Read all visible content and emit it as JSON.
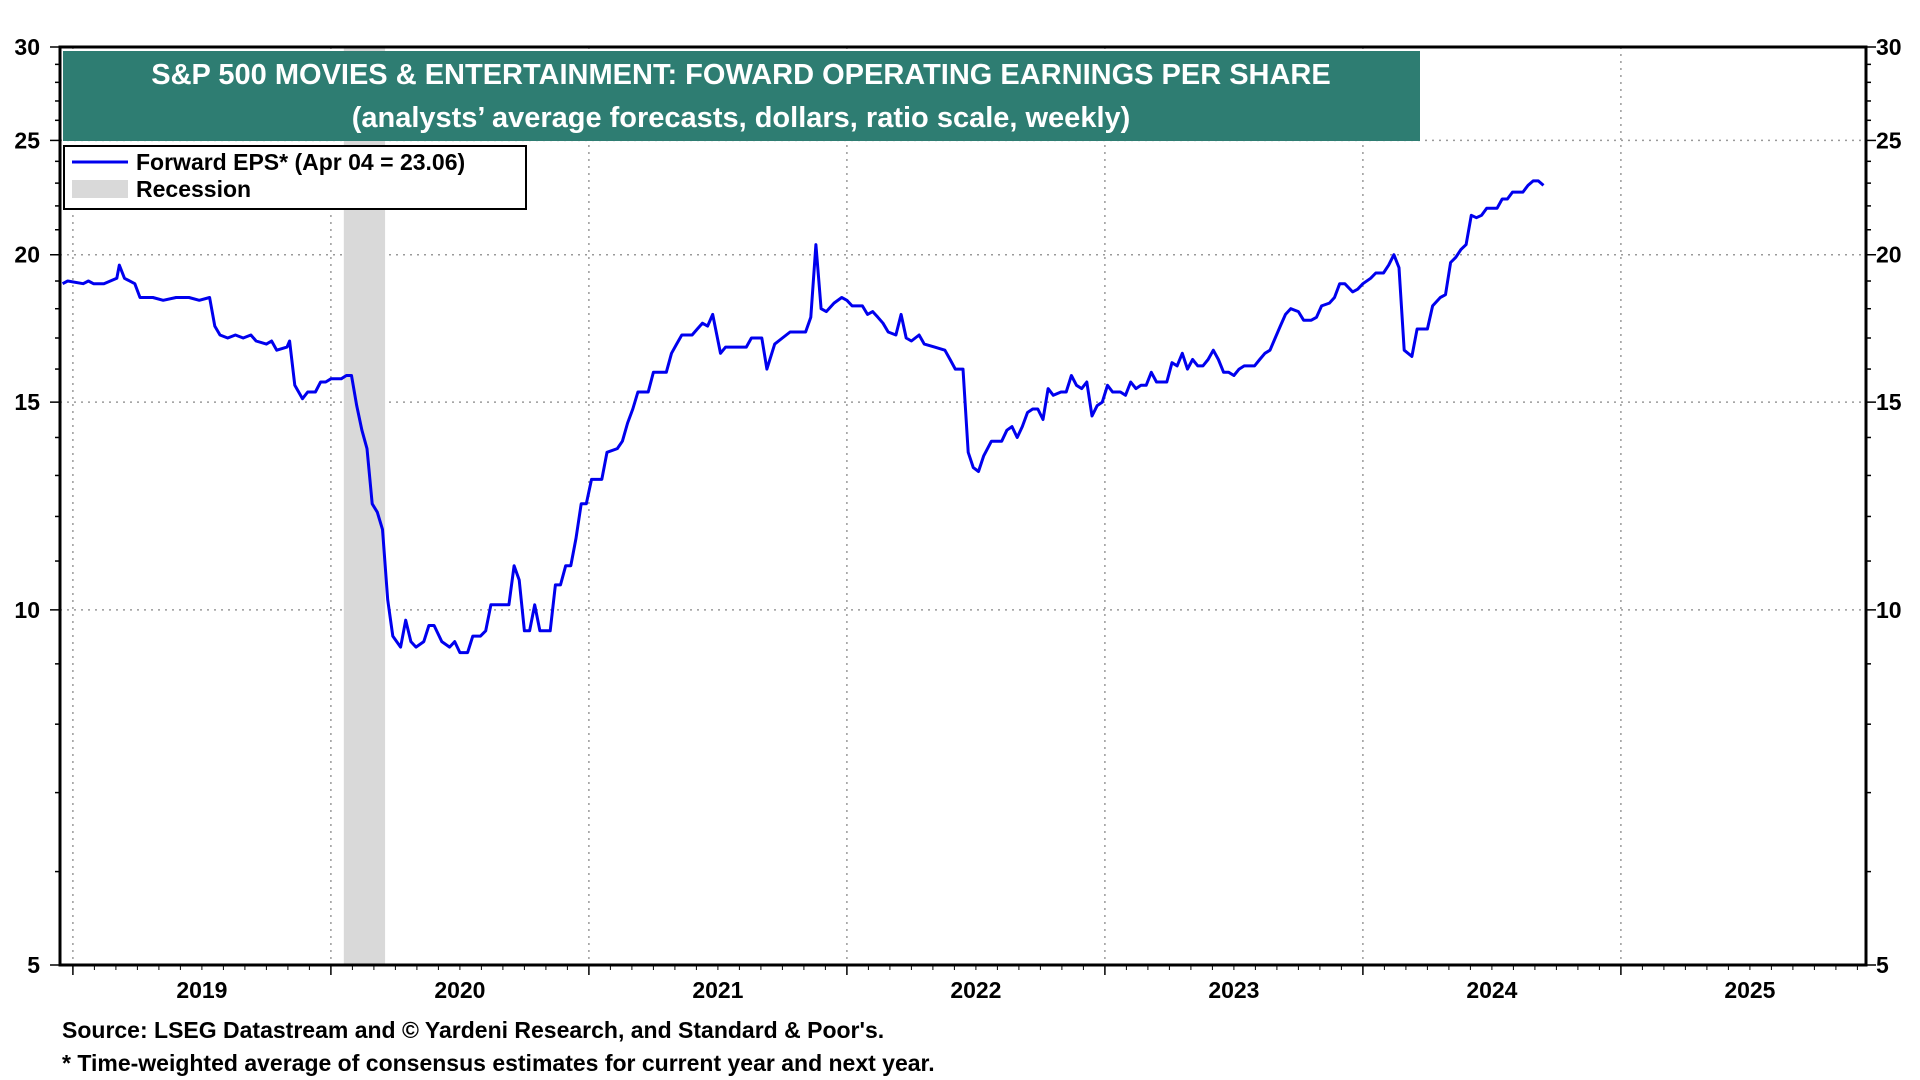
{
  "chart_data": {
    "type": "line",
    "title": "S&P 500 MOVIES & ENTERTAINMENT: FOWARD OPERATING EARNINGS PER SHARE",
    "subtitle": "(analysts’ average forecasts, dollars, ratio scale, weekly)",
    "y_scale": "log",
    "ylim": [
      5,
      30
    ],
    "xlim": [
      2018.95,
      2025.95
    ],
    "y_ticks": [
      5,
      10,
      15,
      20,
      25,
      30
    ],
    "x_tick_labels": [
      "2019",
      "2020",
      "2021",
      "2022",
      "2023",
      "2024",
      "2025"
    ],
    "grid": true,
    "legend_placement": "top-left",
    "legend": [
      {
        "label": "Forward EPS* (Apr 04 = 23.06)",
        "type": "line",
        "color": "#0000ee"
      },
      {
        "label": "Recession",
        "type": "band",
        "color": "#d9d9d9"
      }
    ],
    "recession": [
      2020.05,
      2020.21
    ],
    "series": [
      {
        "name": "Forward EPS* (Apr 04 = 23.06)",
        "color": "#0000ee",
        "points": [
          [
            2018.96,
            18.9
          ],
          [
            2018.98,
            19.0
          ],
          [
            2019.04,
            18.9
          ],
          [
            2019.06,
            19.0
          ],
          [
            2019.08,
            18.9
          ],
          [
            2019.12,
            18.9
          ],
          [
            2019.17,
            19.1
          ],
          [
            2019.18,
            19.6
          ],
          [
            2019.2,
            19.1
          ],
          [
            2019.24,
            18.9
          ],
          [
            2019.26,
            18.4
          ],
          [
            2019.31,
            18.4
          ],
          [
            2019.35,
            18.3
          ],
          [
            2019.4,
            18.4
          ],
          [
            2019.45,
            18.4
          ],
          [
            2019.49,
            18.3
          ],
          [
            2019.53,
            18.4
          ],
          [
            2019.55,
            17.4
          ],
          [
            2019.57,
            17.1
          ],
          [
            2019.6,
            17.0
          ],
          [
            2019.63,
            17.1
          ],
          [
            2019.66,
            17.0
          ],
          [
            2019.69,
            17.1
          ],
          [
            2019.71,
            16.9
          ],
          [
            2019.75,
            16.8
          ],
          [
            2019.77,
            16.9
          ],
          [
            2019.79,
            16.6
          ],
          [
            2019.83,
            16.7
          ],
          [
            2019.84,
            16.9
          ],
          [
            2019.86,
            15.5
          ],
          [
            2019.89,
            15.1
          ],
          [
            2019.91,
            15.3
          ],
          [
            2019.94,
            15.3
          ],
          [
            2019.96,
            15.6
          ],
          [
            2019.98,
            15.6
          ],
          [
            2020.0,
            15.7
          ],
          [
            2020.04,
            15.7
          ],
          [
            2020.06,
            15.8
          ],
          [
            2020.08,
            15.8
          ],
          [
            2020.1,
            14.9
          ],
          [
            2020.12,
            14.2
          ],
          [
            2020.14,
            13.7
          ],
          [
            2020.16,
            12.3
          ],
          [
            2020.18,
            12.1
          ],
          [
            2020.2,
            11.7
          ],
          [
            2020.22,
            10.2
          ],
          [
            2020.24,
            9.5
          ],
          [
            2020.27,
            9.3
          ],
          [
            2020.29,
            9.8
          ],
          [
            2020.31,
            9.4
          ],
          [
            2020.33,
            9.3
          ],
          [
            2020.36,
            9.4
          ],
          [
            2020.38,
            9.7
          ],
          [
            2020.4,
            9.7
          ],
          [
            2020.43,
            9.4
          ],
          [
            2020.46,
            9.3
          ],
          [
            2020.48,
            9.4
          ],
          [
            2020.5,
            9.2
          ],
          [
            2020.53,
            9.2
          ],
          [
            2020.55,
            9.5
          ],
          [
            2020.58,
            9.5
          ],
          [
            2020.6,
            9.6
          ],
          [
            2020.62,
            10.1
          ],
          [
            2020.66,
            10.1
          ],
          [
            2020.69,
            10.1
          ],
          [
            2020.71,
            10.9
          ],
          [
            2020.73,
            10.6
          ],
          [
            2020.75,
            9.6
          ],
          [
            2020.77,
            9.6
          ],
          [
            2020.79,
            10.1
          ],
          [
            2020.81,
            9.6
          ],
          [
            2020.85,
            9.6
          ],
          [
            2020.87,
            10.5
          ],
          [
            2020.89,
            10.5
          ],
          [
            2020.91,
            10.9
          ],
          [
            2020.93,
            10.9
          ],
          [
            2020.95,
            11.5
          ],
          [
            2020.97,
            12.3
          ],
          [
            2020.99,
            12.3
          ],
          [
            2021.01,
            12.9
          ],
          [
            2021.05,
            12.9
          ],
          [
            2021.07,
            13.6
          ],
          [
            2021.11,
            13.7
          ],
          [
            2021.13,
            13.9
          ],
          [
            2021.15,
            14.4
          ],
          [
            2021.17,
            14.8
          ],
          [
            2021.19,
            15.3
          ],
          [
            2021.23,
            15.3
          ],
          [
            2021.25,
            15.9
          ],
          [
            2021.27,
            15.9
          ],
          [
            2021.3,
            15.9
          ],
          [
            2021.32,
            16.5
          ],
          [
            2021.34,
            16.8
          ],
          [
            2021.36,
            17.1
          ],
          [
            2021.4,
            17.1
          ],
          [
            2021.42,
            17.3
          ],
          [
            2021.44,
            17.5
          ],
          [
            2021.46,
            17.4
          ],
          [
            2021.48,
            17.8
          ],
          [
            2021.51,
            16.5
          ],
          [
            2021.53,
            16.7
          ],
          [
            2021.57,
            16.7
          ],
          [
            2021.61,
            16.7
          ],
          [
            2021.63,
            17.0
          ],
          [
            2021.67,
            17.0
          ],
          [
            2021.69,
            16.0
          ],
          [
            2021.72,
            16.8
          ],
          [
            2021.75,
            17.0
          ],
          [
            2021.78,
            17.2
          ],
          [
            2021.81,
            17.2
          ],
          [
            2021.84,
            17.2
          ],
          [
            2021.86,
            17.7
          ],
          [
            2021.88,
            20.4
          ],
          [
            2021.9,
            18.0
          ],
          [
            2021.92,
            17.9
          ],
          [
            2021.95,
            18.2
          ],
          [
            2021.98,
            18.4
          ],
          [
            2022.0,
            18.3
          ],
          [
            2022.02,
            18.1
          ],
          [
            2022.06,
            18.1
          ],
          [
            2022.08,
            17.8
          ],
          [
            2022.1,
            17.9
          ],
          [
            2022.12,
            17.7
          ],
          [
            2022.14,
            17.5
          ],
          [
            2022.16,
            17.2
          ],
          [
            2022.19,
            17.1
          ],
          [
            2022.21,
            17.8
          ],
          [
            2022.23,
            17.0
          ],
          [
            2022.25,
            16.9
          ],
          [
            2022.28,
            17.1
          ],
          [
            2022.3,
            16.8
          ],
          [
            2022.34,
            16.7
          ],
          [
            2022.38,
            16.6
          ],
          [
            2022.4,
            16.3
          ],
          [
            2022.42,
            16.0
          ],
          [
            2022.45,
            16.0
          ],
          [
            2022.47,
            13.6
          ],
          [
            2022.49,
            13.2
          ],
          [
            2022.51,
            13.1
          ],
          [
            2022.53,
            13.5
          ],
          [
            2022.56,
            13.9
          ],
          [
            2022.6,
            13.9
          ],
          [
            2022.62,
            14.2
          ],
          [
            2022.64,
            14.3
          ],
          [
            2022.66,
            14.0
          ],
          [
            2022.68,
            14.3
          ],
          [
            2022.7,
            14.7
          ],
          [
            2022.72,
            14.8
          ],
          [
            2022.74,
            14.8
          ],
          [
            2022.76,
            14.5
          ],
          [
            2022.78,
            15.4
          ],
          [
            2022.8,
            15.2
          ],
          [
            2022.83,
            15.3
          ],
          [
            2022.85,
            15.3
          ],
          [
            2022.87,
            15.8
          ],
          [
            2022.89,
            15.5
          ],
          [
            2022.91,
            15.4
          ],
          [
            2022.93,
            15.6
          ],
          [
            2022.95,
            14.6
          ],
          [
            2022.97,
            14.9
          ],
          [
            2022.99,
            15.0
          ],
          [
            2023.01,
            15.5
          ],
          [
            2023.03,
            15.3
          ],
          [
            2023.06,
            15.3
          ],
          [
            2023.08,
            15.2
          ],
          [
            2023.1,
            15.6
          ],
          [
            2023.12,
            15.4
          ],
          [
            2023.14,
            15.5
          ],
          [
            2023.16,
            15.5
          ],
          [
            2023.18,
            15.9
          ],
          [
            2023.2,
            15.6
          ],
          [
            2023.22,
            15.6
          ],
          [
            2023.24,
            15.6
          ],
          [
            2023.26,
            16.2
          ],
          [
            2023.28,
            16.1
          ],
          [
            2023.3,
            16.5
          ],
          [
            2023.32,
            16.0
          ],
          [
            2023.34,
            16.3
          ],
          [
            2023.36,
            16.1
          ],
          [
            2023.38,
            16.1
          ],
          [
            2023.4,
            16.3
          ],
          [
            2023.42,
            16.6
          ],
          [
            2023.44,
            16.3
          ],
          [
            2023.46,
            15.9
          ],
          [
            2023.48,
            15.9
          ],
          [
            2023.5,
            15.8
          ],
          [
            2023.52,
            16.0
          ],
          [
            2023.54,
            16.1
          ],
          [
            2023.56,
            16.1
          ],
          [
            2023.58,
            16.1
          ],
          [
            2023.6,
            16.3
          ],
          [
            2023.62,
            16.5
          ],
          [
            2023.64,
            16.6
          ],
          [
            2023.66,
            17.0
          ],
          [
            2023.68,
            17.4
          ],
          [
            2023.7,
            17.8
          ],
          [
            2023.72,
            18.0
          ],
          [
            2023.75,
            17.9
          ],
          [
            2023.77,
            17.6
          ],
          [
            2023.8,
            17.6
          ],
          [
            2023.82,
            17.7
          ],
          [
            2023.84,
            18.1
          ],
          [
            2023.87,
            18.2
          ],
          [
            2023.89,
            18.4
          ],
          [
            2023.91,
            18.9
          ],
          [
            2023.93,
            18.9
          ],
          [
            2023.96,
            18.6
          ],
          [
            2023.98,
            18.7
          ],
          [
            2024.0,
            18.9
          ],
          [
            2024.03,
            19.1
          ],
          [
            2024.05,
            19.3
          ],
          [
            2024.08,
            19.3
          ],
          [
            2024.1,
            19.6
          ],
          [
            2024.12,
            20.0
          ],
          [
            2024.14,
            19.5
          ],
          [
            2024.16,
            16.6
          ],
          [
            2024.19,
            16.4
          ],
          [
            2024.21,
            17.3
          ],
          [
            2024.25,
            17.3
          ],
          [
            2024.27,
            18.1
          ],
          [
            2024.3,
            18.4
          ],
          [
            2024.32,
            18.5
          ],
          [
            2024.34,
            19.7
          ],
          [
            2024.36,
            19.9
          ],
          [
            2024.38,
            20.2
          ],
          [
            2024.4,
            20.4
          ],
          [
            2024.42,
            21.6
          ],
          [
            2024.44,
            21.5
          ],
          [
            2024.46,
            21.6
          ],
          [
            2024.48,
            21.9
          ],
          [
            2024.52,
            21.9
          ],
          [
            2024.54,
            22.3
          ],
          [
            2024.56,
            22.3
          ],
          [
            2024.58,
            22.6
          ],
          [
            2024.62,
            22.6
          ],
          [
            2024.64,
            22.9
          ],
          [
            2024.66,
            23.1
          ],
          [
            2024.68,
            23.1
          ],
          [
            2024.7,
            22.9
          ]
        ]
      }
    ]
  },
  "footnotes": {
    "source": "Source: LSEG Datastream and © Yardeni Research, and Standard & Poor's.",
    "definition": "* Time-weighted average of consensus estimates for current year and next year."
  }
}
